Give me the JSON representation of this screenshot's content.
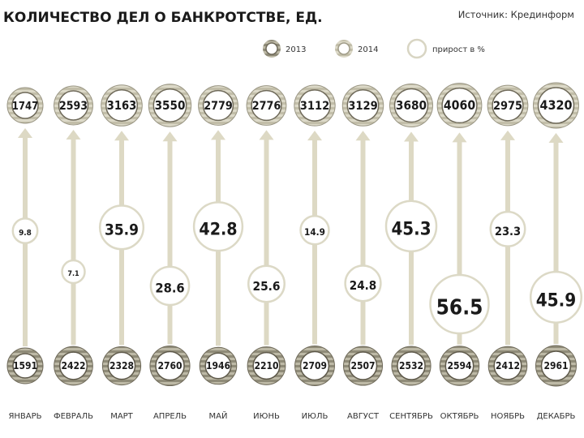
{
  "chart_data": {
    "type": "infographic",
    "title": "КОЛИЧЕСТВО ДЕЛ О БАНКРОТСТВЕ, ЕД.",
    "source": "Источник: Крединформ",
    "legend": [
      {
        "label": "2013",
        "style": "ring-dark"
      },
      {
        "label": "2014",
        "style": "ring-light"
      },
      {
        "label": "прирост в %",
        "style": "circle-outline"
      }
    ],
    "categories": [
      "ЯНВАРЬ",
      "ФЕВРАЛЬ",
      "МАРТ",
      "АПРЕЛЬ",
      "МАЙ",
      "ИЮНЬ",
      "ИЮЛЬ",
      "АВГУСТ",
      "СЕНТЯБРЬ",
      "ОКТЯБРЬ",
      "НОЯБРЬ",
      "ДЕКАБРЬ"
    ],
    "series": [
      {
        "name": "2013",
        "values": [
          1591,
          2422,
          2328,
          2760,
          1946,
          2210,
          2709,
          2507,
          2532,
          2594,
          2412,
          2961
        ]
      },
      {
        "name": "2014",
        "values": [
          1747,
          2593,
          3163,
          3550,
          2779,
          2776,
          3112,
          3129,
          3680,
          4060,
          2975,
          4320
        ]
      },
      {
        "name": "прирост в %",
        "values": [
          9.8,
          7.1,
          35.9,
          28.6,
          42.8,
          25.6,
          14.9,
          24.8,
          45.3,
          56.5,
          23.3,
          45.9
        ]
      }
    ],
    "colors": {
      "ring_dark": "#6f6a5a",
      "ring_light": "#c8c4b2",
      "stripe": "#9a9684",
      "arrow": "#ddd9c4",
      "text": "#1a1a1a"
    }
  }
}
